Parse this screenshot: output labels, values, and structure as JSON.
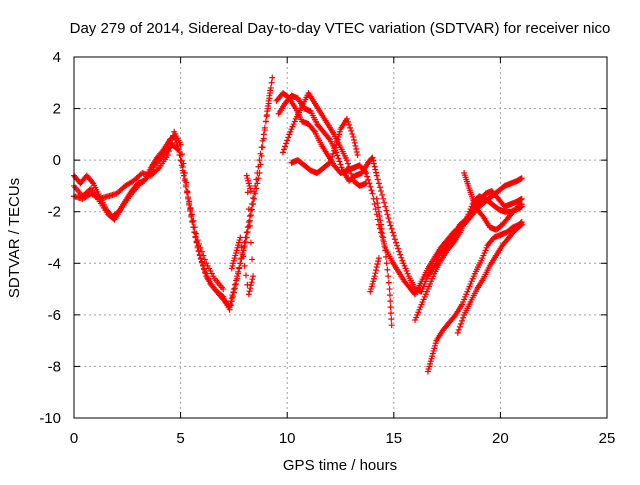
{
  "chart_data": {
    "type": "scatter",
    "title": "Day 279 of 2014, Sidereal Day-to-day VTEC variation (SDTVAR) for receiver nico",
    "xlabel": "GPS time / hours",
    "ylabel": "SDTVAR / TECUs",
    "xlim": [
      0,
      25
    ],
    "ylim": [
      -10,
      4
    ],
    "x_ticks": [
      "0",
      "5",
      "10",
      "15",
      "20",
      "25"
    ],
    "y_ticks": [
      "4",
      "2",
      "0",
      "-2",
      "-4",
      "-6",
      "-8",
      "-10"
    ],
    "grid": true,
    "marker": "plus",
    "color": "#ff0000",
    "series": [
      {
        "points": [
          [
            0,
            -0.6
          ],
          [
            0.3,
            -0.9
          ],
          [
            0.6,
            -0.6
          ],
          [
            0.9,
            -0.9
          ],
          [
            1.2,
            -1.4
          ],
          [
            1.5,
            -1.9
          ],
          [
            1.8,
            -2.2
          ],
          [
            2.1,
            -2.0
          ],
          [
            2.4,
            -1.6
          ],
          [
            2.7,
            -1.2
          ],
          [
            3.0,
            -0.9
          ],
          [
            3.3,
            -0.8
          ],
          [
            3.6,
            -0.3
          ],
          [
            3.9,
            0.1
          ],
          [
            4.2,
            0.4
          ],
          [
            4.5,
            0.8
          ],
          [
            4.7,
            0.9
          ],
          [
            5.0,
            0.2
          ],
          [
            5.3,
            -1.2
          ],
          [
            5.6,
            -2.6
          ],
          [
            5.9,
            -3.7
          ],
          [
            6.2,
            -4.5
          ],
          [
            6.5,
            -4.9
          ],
          [
            6.8,
            -5.2
          ],
          [
            7.1,
            -5.5
          ],
          [
            7.3,
            -5.7
          ],
          [
            7.5,
            -5.0
          ],
          [
            7.8,
            -4.0
          ],
          [
            8.1,
            -3.0
          ],
          [
            8.4,
            -1.7
          ],
          [
            8.7,
            -0.5
          ],
          [
            9.0,
            1.5
          ],
          [
            9.2,
            2.7
          ]
        ]
      },
      {
        "points": [
          [
            0,
            -1.0
          ],
          [
            0.4,
            -1.4
          ],
          [
            0.8,
            -1.1
          ],
          [
            1.2,
            -1.6
          ],
          [
            1.6,
            -2.1
          ],
          [
            1.9,
            -2.3
          ],
          [
            2.2,
            -1.9
          ],
          [
            2.6,
            -1.4
          ],
          [
            3.0,
            -1.0
          ],
          [
            3.4,
            -0.7
          ],
          [
            3.8,
            -0.2
          ],
          [
            4.2,
            0.2
          ],
          [
            4.6,
            0.6
          ],
          [
            4.9,
            0.4
          ],
          [
            5.2,
            -0.8
          ],
          [
            5.5,
            -2.2
          ],
          [
            5.8,
            -3.4
          ],
          [
            6.1,
            -4.2
          ],
          [
            6.4,
            -4.8
          ],
          [
            6.7,
            -5.1
          ],
          [
            7.0,
            -5.3
          ],
          [
            7.3,
            -5.8
          ],
          [
            7.6,
            -4.8
          ],
          [
            7.9,
            -3.6
          ],
          [
            8.2,
            -2.4
          ],
          [
            8.5,
            -1.0
          ],
          [
            8.8,
            0.5
          ],
          [
            9.1,
            2.0
          ],
          [
            9.3,
            3.2
          ]
        ]
      },
      {
        "points": [
          [
            0,
            -1.4
          ],
          [
            0.4,
            -1.5
          ],
          [
            0.8,
            -1.3
          ],
          [
            1.2,
            -1.5
          ],
          [
            1.6,
            -1.4
          ],
          [
            2.0,
            -1.3
          ],
          [
            2.4,
            -1.0
          ],
          [
            2.8,
            -0.8
          ],
          [
            3.2,
            -0.5
          ],
          [
            3.6,
            -0.6
          ],
          [
            4.0,
            -0.3
          ],
          [
            4.4,
            0.2
          ],
          [
            4.7,
            1.1
          ],
          [
            5.0,
            0.6
          ],
          [
            5.4,
            -1.6
          ],
          [
            5.8,
            -3.1
          ],
          [
            6.2,
            -4.0
          ],
          [
            6.6,
            -4.6
          ],
          [
            7.0,
            -5.0
          ]
        ]
      },
      {
        "points": [
          [
            7.4,
            -4.2
          ],
          [
            7.6,
            -3.6
          ],
          [
            7.8,
            -3.0
          ],
          [
            8.2,
            -5.2
          ],
          [
            8.4,
            -4.5
          ],
          [
            8.1,
            -0.6
          ],
          [
            8.3,
            -1.2
          ]
        ]
      },
      {
        "points": [
          [
            9.5,
            2.3
          ],
          [
            9.8,
            2.6
          ],
          [
            10.1,
            2.4
          ],
          [
            10.4,
            2.0
          ],
          [
            10.7,
            1.5
          ],
          [
            11.0,
            1.4
          ],
          [
            11.3,
            1.1
          ],
          [
            11.6,
            0.6
          ],
          [
            11.9,
            0.2
          ],
          [
            12.2,
            -0.2
          ],
          [
            12.5,
            -0.5
          ],
          [
            12.8,
            -0.4
          ],
          [
            13.1,
            -0.3
          ],
          [
            13.4,
            -0.2
          ],
          [
            13.7,
            -0.5
          ],
          [
            14.0,
            -1.3
          ],
          [
            14.3,
            -2.5
          ],
          [
            14.6,
            -3.4
          ],
          [
            14.9,
            -3.9
          ],
          [
            15.2,
            -4.3
          ],
          [
            15.5,
            -4.7
          ],
          [
            15.8,
            -5.0
          ],
          [
            16.0,
            -5.2
          ],
          [
            16.3,
            -4.7
          ],
          [
            16.6,
            -4.2
          ],
          [
            16.9,
            -3.8
          ],
          [
            17.2,
            -3.4
          ],
          [
            17.5,
            -3.1
          ],
          [
            17.8,
            -2.8
          ],
          [
            18.1,
            -2.6
          ],
          [
            18.4,
            -2.4
          ],
          [
            18.7,
            -2.1
          ],
          [
            19.0,
            -1.8
          ],
          [
            19.3,
            -1.6
          ],
          [
            19.6,
            -1.4
          ],
          [
            19.9,
            -1.2
          ],
          [
            20.2,
            -1.0
          ],
          [
            20.5,
            -0.9
          ],
          [
            20.8,
            -0.8
          ],
          [
            21.0,
            -0.7
          ]
        ]
      },
      {
        "points": [
          [
            9.6,
            1.8
          ],
          [
            9.9,
            2.2
          ],
          [
            10.2,
            2.5
          ],
          [
            10.5,
            2.4
          ],
          [
            10.8,
            2.0
          ],
          [
            11.1,
            1.9
          ],
          [
            11.4,
            1.4
          ],
          [
            11.7,
            1.1
          ],
          [
            12.0,
            0.8
          ],
          [
            12.3,
            0.3
          ],
          [
            12.6,
            -0.4
          ],
          [
            12.9,
            -0.8
          ],
          [
            13.2,
            -0.6
          ],
          [
            13.5,
            -0.5
          ],
          [
            13.8,
            -0.1
          ],
          [
            14.0,
            0.1
          ],
          [
            14.2,
            -0.6
          ],
          [
            14.5,
            -1.5
          ],
          [
            14.8,
            -2.4
          ],
          [
            15.1,
            -3.2
          ],
          [
            15.4,
            -3.9
          ],
          [
            15.7,
            -4.5
          ],
          [
            16.0,
            -5.0
          ],
          [
            16.3,
            -5.1
          ],
          [
            16.6,
            -4.5
          ],
          [
            16.9,
            -4.1
          ],
          [
            17.2,
            -3.6
          ],
          [
            17.5,
            -3.3
          ],
          [
            17.8,
            -2.9
          ],
          [
            18.1,
            -2.5
          ],
          [
            18.4,
            -2.3
          ],
          [
            18.7,
            -1.9
          ],
          [
            19.0,
            -1.6
          ],
          [
            19.3,
            -1.3
          ],
          [
            19.6,
            -1.2
          ],
          [
            19.9,
            -1.5
          ],
          [
            20.2,
            -1.8
          ],
          [
            20.5,
            -1.7
          ],
          [
            20.8,
            -1.6
          ],
          [
            21.0,
            -1.5
          ]
        ]
      },
      {
        "points": [
          [
            9.8,
            0.3
          ],
          [
            10.1,
            1.0
          ],
          [
            10.4,
            1.6
          ],
          [
            10.7,
            2.1
          ],
          [
            11.0,
            2.6
          ],
          [
            11.3,
            2.2
          ],
          [
            11.6,
            1.8
          ],
          [
            11.9,
            1.4
          ],
          [
            12.2,
            1.0
          ],
          [
            12.5,
            0.5
          ],
          [
            12.8,
            0.0
          ],
          [
            13.1,
            -0.8
          ],
          [
            13.4,
            -1.0
          ],
          [
            13.7,
            -0.9
          ]
        ]
      },
      {
        "points": [
          [
            10.2,
            -0.1
          ],
          [
            10.5,
            0.0
          ],
          [
            10.8,
            -0.2
          ],
          [
            11.1,
            -0.4
          ],
          [
            11.4,
            -0.5
          ],
          [
            11.7,
            -0.3
          ],
          [
            12.0,
            -0.1
          ],
          [
            12.3,
            0.6
          ],
          [
            12.5,
            1.2
          ],
          [
            12.8,
            1.6
          ],
          [
            13.1,
            0.9
          ],
          [
            13.3,
            0.2
          ]
        ]
      },
      {
        "points": [
          [
            14.2,
            -1.5
          ],
          [
            14.4,
            -2.5
          ],
          [
            14.6,
            -3.5
          ],
          [
            14.8,
            -5.0
          ],
          [
            14.9,
            -6.4
          ]
        ]
      },
      {
        "points": [
          [
            13.9,
            -5.1
          ],
          [
            14.1,
            -4.5
          ],
          [
            14.3,
            -3.8
          ]
        ]
      },
      {
        "points": [
          [
            16.0,
            -6.2
          ],
          [
            16.3,
            -5.6
          ],
          [
            16.6,
            -5.0
          ],
          [
            16.9,
            -4.4
          ],
          [
            17.2,
            -3.9
          ],
          [
            17.5,
            -3.5
          ],
          [
            17.8,
            -3.2
          ],
          [
            18.1,
            -2.8
          ],
          [
            18.4,
            -2.3
          ],
          [
            18.7,
            -1.7
          ],
          [
            19.0,
            -1.4
          ],
          [
            19.3,
            -1.5
          ],
          [
            19.6,
            -1.7
          ],
          [
            19.9,
            -1.9
          ],
          [
            20.2,
            -2.0
          ],
          [
            20.5,
            -2.0
          ],
          [
            20.8,
            -1.9
          ],
          [
            21.0,
            -1.8
          ]
        ]
      },
      {
        "points": [
          [
            16.6,
            -8.2
          ],
          [
            16.8,
            -7.6
          ],
          [
            17.0,
            -7.0
          ],
          [
            17.3,
            -6.6
          ],
          [
            17.6,
            -6.3
          ],
          [
            17.9,
            -6.0
          ],
          [
            18.2,
            -5.6
          ],
          [
            18.5,
            -5.0
          ],
          [
            18.8,
            -4.4
          ],
          [
            19.1,
            -3.9
          ],
          [
            19.4,
            -3.3
          ],
          [
            19.7,
            -3.0
          ],
          [
            20.0,
            -2.9
          ],
          [
            20.3,
            -2.8
          ],
          [
            20.6,
            -2.6
          ],
          [
            20.9,
            -2.5
          ],
          [
            21.0,
            -2.4
          ]
        ]
      },
      {
        "points": [
          [
            18.0,
            -6.7
          ],
          [
            18.3,
            -6.0
          ],
          [
            18.6,
            -5.5
          ],
          [
            18.9,
            -5.0
          ],
          [
            19.2,
            -4.6
          ],
          [
            19.5,
            -4.1
          ],
          [
            19.8,
            -3.7
          ],
          [
            20.1,
            -3.3
          ],
          [
            20.4,
            -3.0
          ],
          [
            20.7,
            -2.7
          ],
          [
            21.0,
            -2.5
          ]
        ]
      },
      {
        "points": [
          [
            18.3,
            -0.5
          ],
          [
            18.5,
            -1.0
          ],
          [
            18.7,
            -1.5
          ],
          [
            18.9,
            -1.9
          ],
          [
            19.2,
            -2.2
          ],
          [
            19.5,
            -2.6
          ],
          [
            19.8,
            -2.7
          ],
          [
            20.1,
            -2.5
          ],
          [
            20.4,
            -2.2
          ],
          [
            20.7,
            -1.9
          ],
          [
            21.0,
            -1.7
          ]
        ]
      }
    ]
  }
}
